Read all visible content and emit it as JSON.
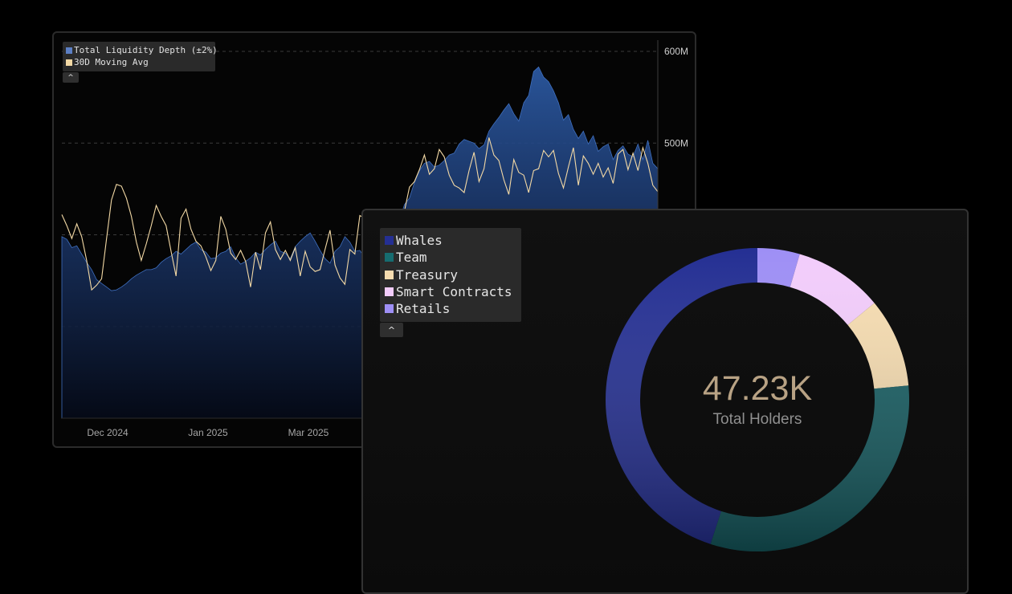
{
  "chart_data": [
    {
      "type": "area",
      "legend": [
        "Total Liquidity Depth (±2%)",
        "30D Moving Avg"
      ],
      "legend_position": "top-left",
      "x_tick_labels": [
        "Dec 2024",
        "Jan 2025",
        "Mar 2025"
      ],
      "y_tick_labels": [
        "600M",
        "500M"
      ],
      "ylim": [
        200,
        600
      ],
      "grid": true,
      "series": [
        {
          "name": "Total Liquidity Depth (±2%)",
          "color": "#2d5393",
          "x": [
            0,
            3,
            6,
            9,
            12,
            15,
            18,
            21,
            24,
            27,
            30,
            33,
            36,
            39,
            42,
            45,
            48,
            51,
            54,
            57,
            60,
            63,
            66,
            69,
            72,
            75,
            78,
            81,
            84,
            87,
            90,
            93,
            96,
            99,
            102,
            105,
            108,
            111,
            114,
            117,
            120,
            123,
            126,
            129,
            132,
            135,
            138,
            141,
            144,
            147,
            150,
            153,
            156,
            159,
            162,
            165,
            168,
            171,
            174,
            177,
            180,
            183,
            186,
            189,
            192,
            195,
            198,
            201,
            204,
            207,
            210,
            213,
            216,
            219,
            222,
            225,
            228,
            231,
            234,
            237,
            240,
            243,
            246,
            249,
            252,
            255,
            258,
            261,
            264,
            267,
            270,
            273,
            276,
            279,
            282,
            285,
            288,
            291,
            294,
            297,
            300,
            303,
            306,
            309,
            312,
            315,
            318,
            321,
            324,
            327,
            330,
            333,
            336,
            339,
            342,
            345,
            348,
            351,
            354,
            357,
            360
          ],
          "values": [
            398,
            395,
            386,
            388,
            379,
            370,
            362,
            351,
            347,
            343,
            339,
            340,
            343,
            347,
            352,
            356,
            359,
            362,
            362,
            364,
            370,
            374,
            377,
            382,
            379,
            384,
            389,
            392,
            384,
            381,
            374,
            375,
            380,
            382,
            387,
            375,
            368,
            371,
            375,
            381,
            378,
            384,
            389,
            393,
            382,
            380,
            374,
            387,
            393,
            398,
            402,
            393,
            383,
            374,
            369,
            382,
            387,
            398,
            392,
            382,
            383,
            375,
            383,
            394,
            393,
            393,
            396,
            405,
            416,
            433,
            440,
            457,
            470,
            478,
            480,
            474,
            476,
            481,
            487,
            489,
            499,
            504,
            502,
            500,
            494,
            498,
            513,
            521,
            528,
            536,
            543,
            532,
            524,
            544,
            552,
            578,
            583,
            572,
            567,
            557,
            544,
            525,
            531,
            515,
            505,
            513,
            499,
            508,
            491,
            496,
            499,
            482,
            492,
            497,
            488,
            485,
            499,
            482,
            503,
            478,
            472
          ],
          "unit": "M"
        },
        {
          "name": "30D Moving Avg",
          "color": "#f3d9a5",
          "x": [
            0,
            3,
            6,
            9,
            12,
            15,
            18,
            21,
            24,
            27,
            30,
            33,
            36,
            39,
            42,
            45,
            48,
            51,
            54,
            57,
            60,
            63,
            66,
            69,
            72,
            75,
            78,
            81,
            84,
            87,
            90,
            93,
            96,
            99,
            102,
            105,
            108,
            111,
            114,
            117,
            120,
            123,
            126,
            129,
            132,
            135,
            138,
            141,
            144,
            147,
            150,
            153,
            156,
            159,
            162,
            165,
            168,
            171,
            174,
            177,
            180,
            183,
            186,
            189,
            192,
            195,
            198,
            201,
            204,
            207,
            210,
            213,
            216,
            219,
            222,
            225,
            228,
            231,
            234,
            237,
            240,
            243,
            246,
            249,
            252,
            255,
            258,
            261,
            264,
            267,
            270,
            273,
            276,
            279,
            282,
            285,
            288,
            291,
            294,
            297,
            300,
            303,
            306,
            309,
            312,
            315,
            318,
            321,
            324,
            327,
            330,
            333,
            336,
            339,
            342,
            345,
            348,
            351,
            354,
            357,
            360
          ],
          "values": [
            422,
            410,
            396,
            412,
            398,
            372,
            340,
            345,
            352,
            396,
            438,
            455,
            453,
            440,
            420,
            392,
            372,
            390,
            410,
            432,
            420,
            410,
            382,
            355,
            418,
            428,
            406,
            393,
            388,
            376,
            361,
            372,
            420,
            406,
            380,
            373,
            383,
            371,
            343,
            381,
            362,
            402,
            414,
            384,
            373,
            383,
            372,
            386,
            355,
            382,
            365,
            360,
            362,
            384,
            405,
            367,
            353,
            346,
            384,
            379,
            421,
            418,
            407,
            396,
            361,
            378,
            389,
            407,
            418,
            426,
            452,
            458,
            471,
            487,
            466,
            472,
            493,
            485,
            465,
            454,
            451,
            446,
            470,
            490,
            458,
            472,
            506,
            487,
            481,
            460,
            444,
            482,
            468,
            465,
            446,
            470,
            472,
            492,
            485,
            492,
            467,
            451,
            474,
            495,
            454,
            486,
            478,
            466,
            478,
            463,
            473,
            456,
            488,
            493,
            471,
            489,
            470,
            495,
            478,
            454,
            447
          ]
        }
      ]
    },
    {
      "type": "pie",
      "legend": [
        "Whales",
        "Team",
        "Treasury",
        "Smart Contracts",
        "Retails"
      ],
      "legend_position": "top-left",
      "center_value": "47.23K",
      "center_label": "Total Holders",
      "series": [
        {
          "name": "Holders",
          "labels": [
            "Retails",
            "Smart Contracts",
            "Treasury",
            "Team",
            "Whales"
          ],
          "values": [
            4.5,
            9.5,
            9.5,
            31.5,
            45.0
          ],
          "colors": [
            "#9e8ff5",
            "#f2ccfb",
            "#f6dcb0",
            "#165d62",
            "#242f93"
          ]
        }
      ]
    }
  ],
  "liquidity_panel": {
    "legend": [
      {
        "label": "Total Liquidity Depth (±2%)",
        "color": "#5c7fc4"
      },
      {
        "label": "30D Moving Avg",
        "color": "#f3d9a5"
      }
    ],
    "collapse_icon": "chevron-up-icon",
    "collapse_glyph": "^"
  },
  "holders_panel": {
    "legend": [
      {
        "label": "Whales",
        "color": "#242f93"
      },
      {
        "label": "Team",
        "color": "#166c70"
      },
      {
        "label": "Treasury",
        "color": "#f6dcb0"
      },
      {
        "label": "Smart Contracts",
        "color": "#f2ccfb"
      },
      {
        "label": "Retails",
        "color": "#9e8ff5"
      }
    ],
    "center_value": "47.23K",
    "center_label": "Total Holders",
    "collapse_icon": "chevron-up-icon",
    "collapse_glyph": "^"
  }
}
